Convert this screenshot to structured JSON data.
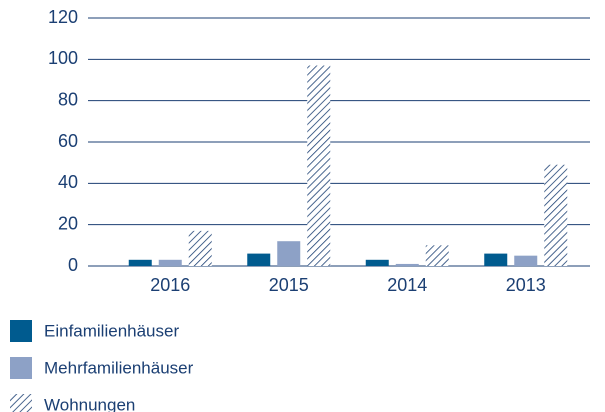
{
  "chart_data": {
    "type": "bar",
    "categories": [
      "2016",
      "2015",
      "2014",
      "2013"
    ],
    "series": [
      {
        "name": "Einfamilienhäuser",
        "color": "#005b8f",
        "values": [
          3,
          6,
          3,
          6
        ]
      },
      {
        "name": "Mehrfamilienhäuser",
        "color": "#8da1c6",
        "values": [
          3,
          12,
          1,
          5
        ]
      },
      {
        "name": "Wohnungen",
        "color": "#1b3f73",
        "hatch": true,
        "values": [
          17,
          97,
          10,
          49
        ]
      }
    ],
    "ylim": [
      0,
      120
    ],
    "yticks": [
      0,
      20,
      40,
      60,
      80,
      100,
      120
    ],
    "grid": true
  }
}
